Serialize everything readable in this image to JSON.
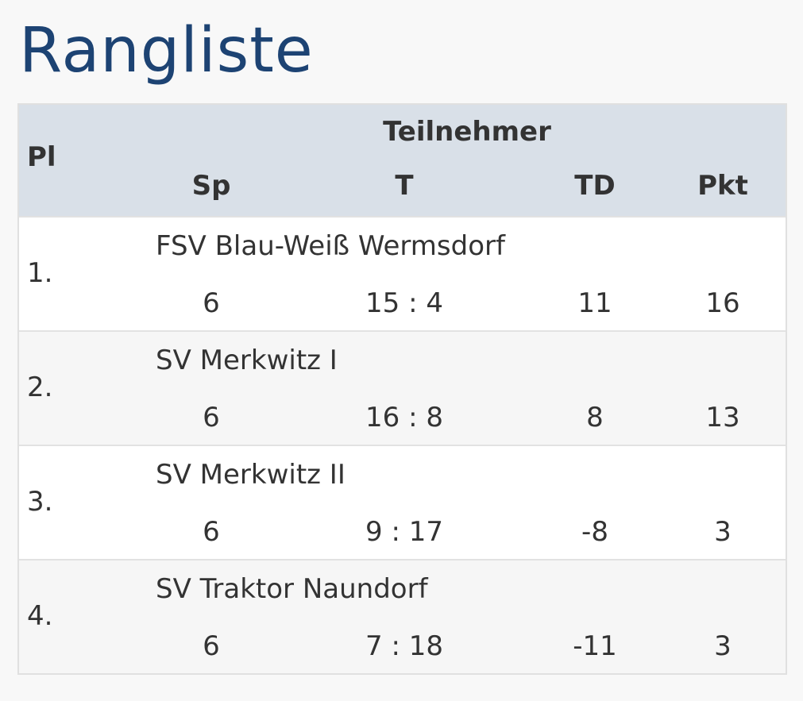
{
  "page": {
    "title": "Rangliste"
  },
  "table": {
    "headers": {
      "place": "Pl",
      "participant": "Teilnehmer",
      "games": "Sp",
      "goals": "T",
      "goal_diff": "TD",
      "points": "Pkt"
    },
    "rows": [
      {
        "place": "1.",
        "name": "FSV Blau-Weiß Wermsdorf",
        "games": "6",
        "goals": "15 : 4",
        "goal_diff": "11",
        "points": "16"
      },
      {
        "place": "2.",
        "name": "SV Merkwitz I",
        "games": "6",
        "goals": "16 : 8",
        "goal_diff": "8",
        "points": "13"
      },
      {
        "place": "3.",
        "name": "SV Merkwitz II",
        "games": "6",
        "goals": "9 : 17",
        "goal_diff": "-8",
        "points": "3"
      },
      {
        "place": "4.",
        "name": "SV Traktor Naundorf",
        "games": "6",
        "goals": "7 : 18",
        "goal_diff": "-11",
        "points": "3"
      }
    ]
  }
}
